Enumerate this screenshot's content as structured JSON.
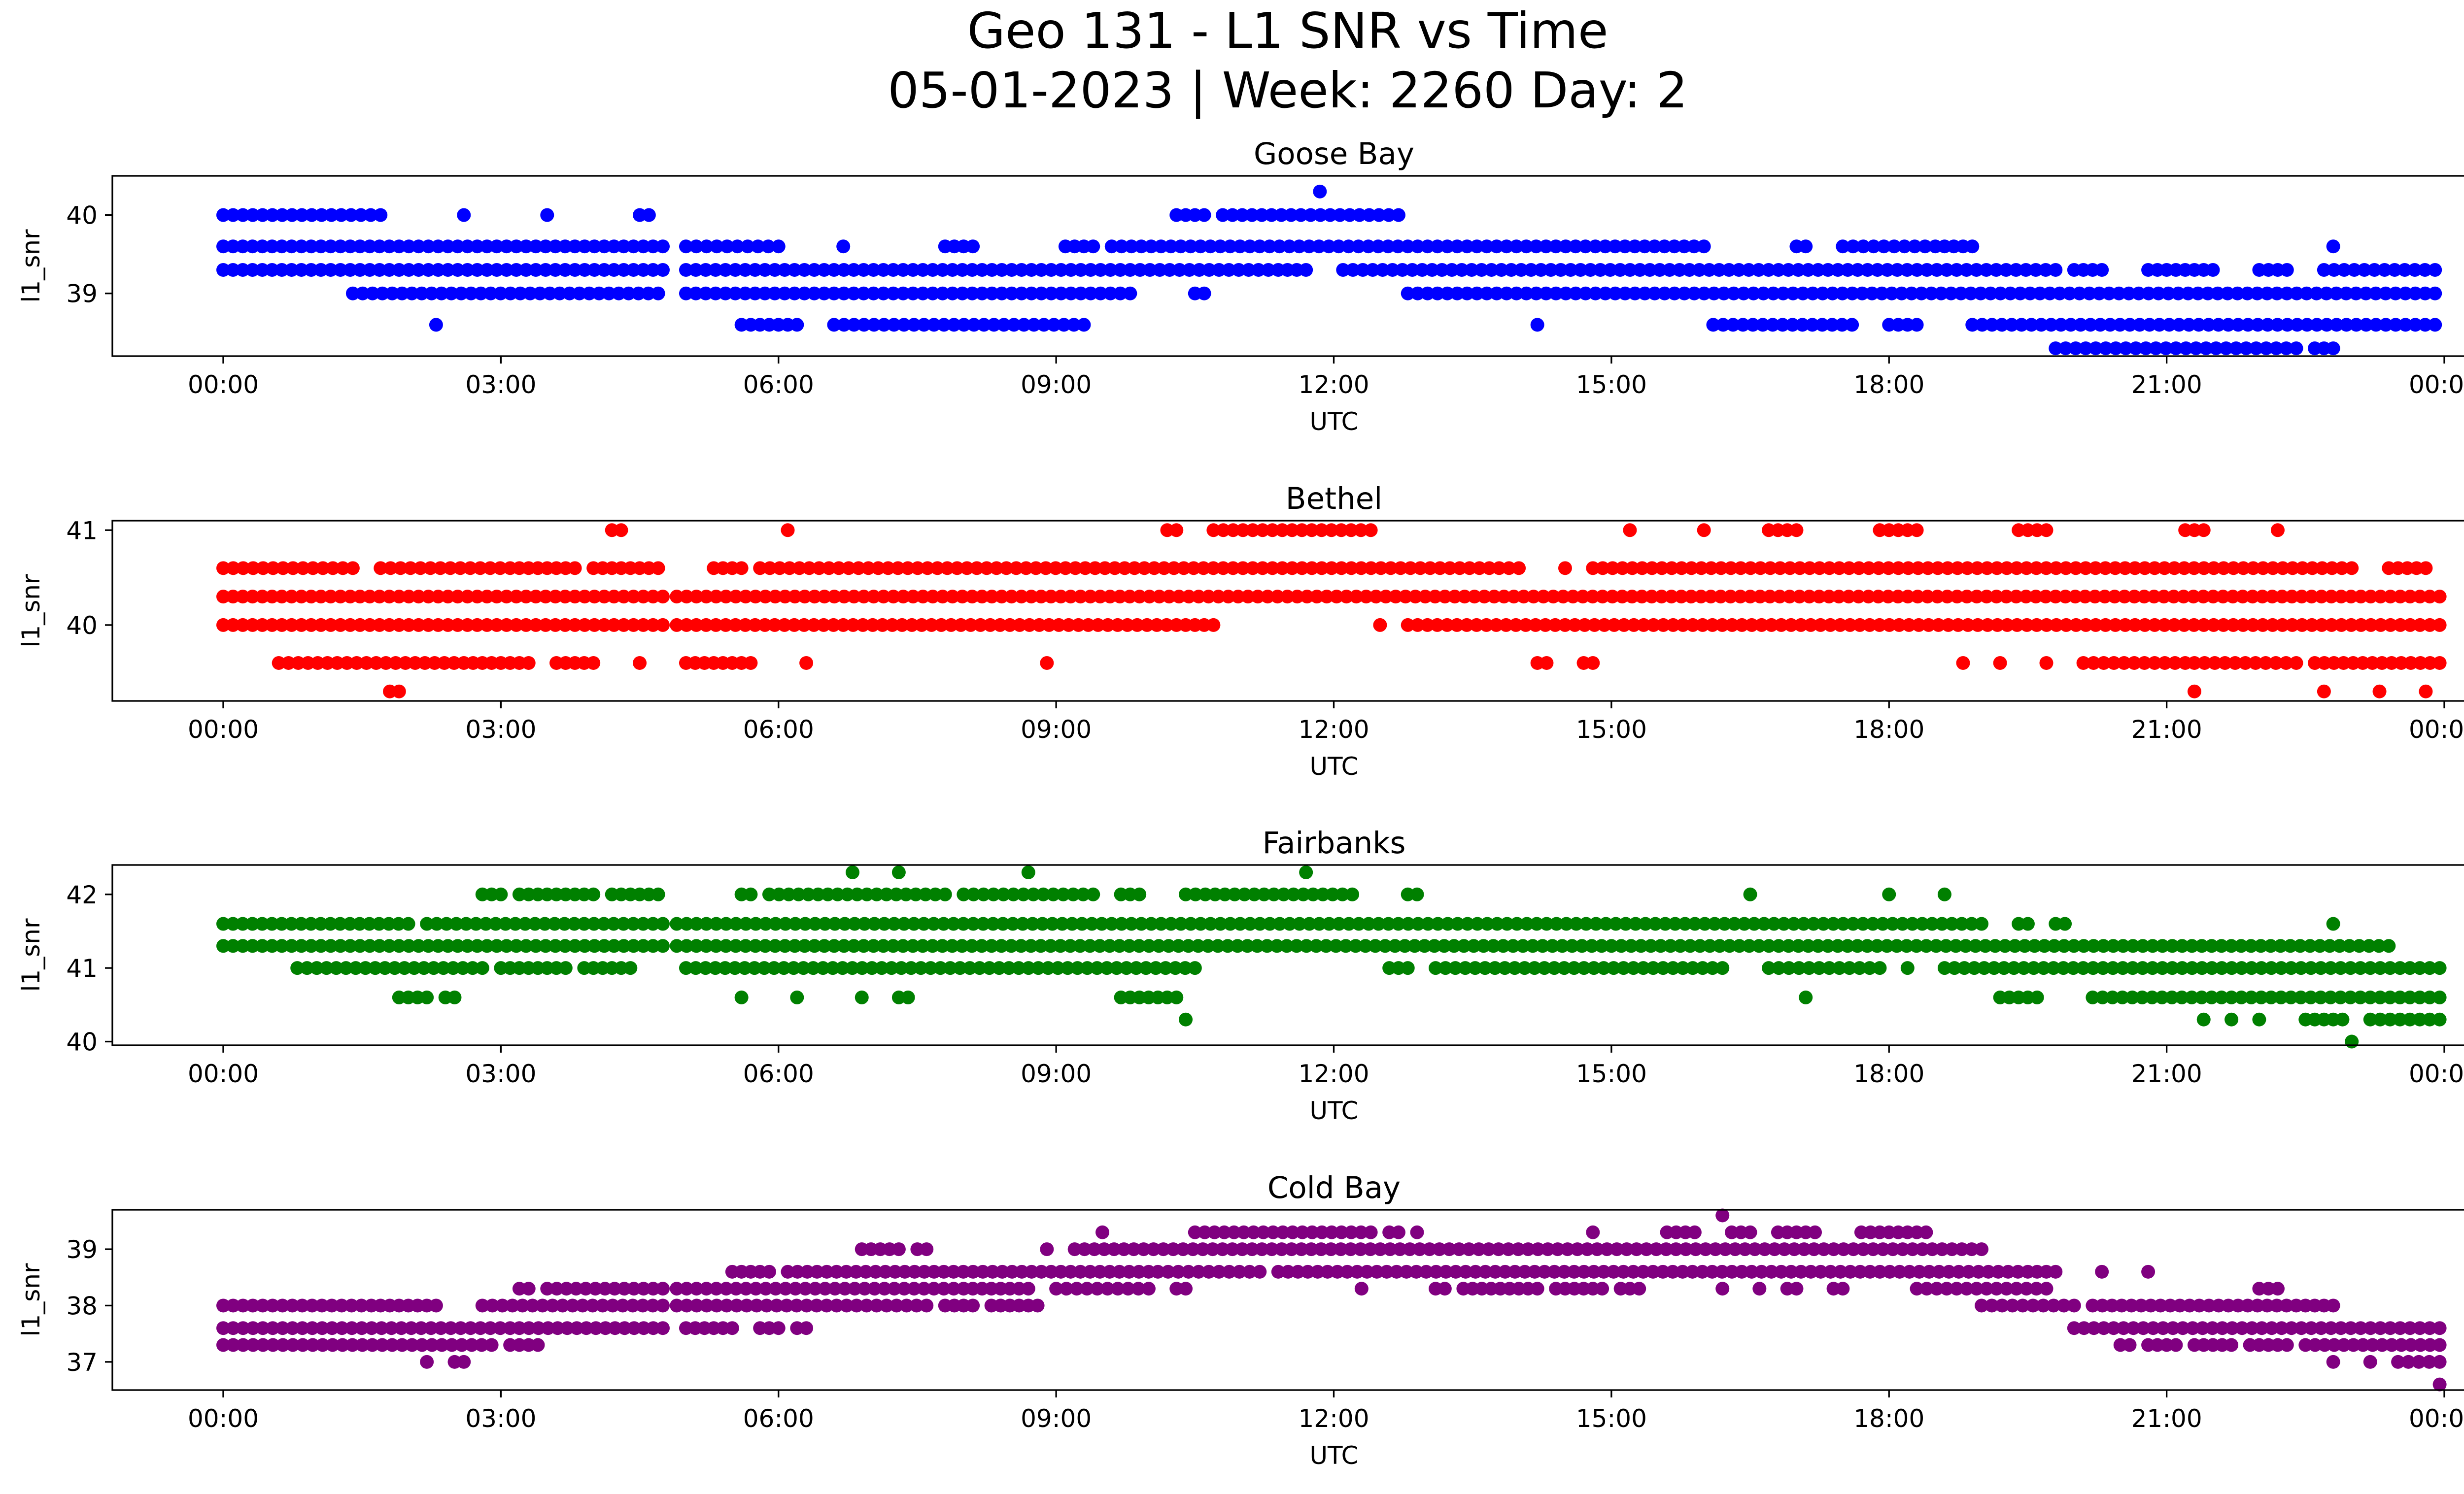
{
  "figure": {
    "title_line1": "Geo 131 - L1 SNR vs Time",
    "title_line2": "05-01-2023 | Week: 2260 Day: 2"
  },
  "chart_data": [
    {
      "type": "scatter",
      "title": "Goose Bay",
      "xlabel": "UTC",
      "ylabel": "l1_snr",
      "color": "#0000ff",
      "xlim": [
        "00:00",
        "24:00"
      ],
      "ylim": [
        38.2,
        40.5
      ],
      "xticks": [
        "00:00",
        "03:00",
        "06:00",
        "09:00",
        "12:00",
        "15:00",
        "18:00",
        "21:00",
        "00:00"
      ],
      "yticks": [
        39,
        40
      ],
      "series": [
        {
          "y": 40.0,
          "segments": [
            [
              0.0,
              1.7
            ],
            [
              2.6,
              2.6
            ],
            [
              3.5,
              3.5
            ],
            [
              4.5,
              4.6
            ],
            [
              10.3,
              10.6
            ],
            [
              10.8,
              12.7
            ]
          ]
        },
        {
          "y": 39.6,
          "segments": [
            [
              0.0,
              4.75
            ],
            [
              5.0,
              6.0
            ],
            [
              6.7,
              6.7
            ],
            [
              7.8,
              8.1
            ],
            [
              9.1,
              9.4
            ],
            [
              9.6,
              16.0
            ],
            [
              17.0,
              17.1
            ],
            [
              17.5,
              18.5
            ],
            [
              18.6,
              18.9
            ],
            [
              22.8,
              22.8
            ]
          ]
        },
        {
          "y": 39.3,
          "segments": [
            [
              0.0,
              4.75
            ],
            [
              5.0,
              11.4
            ],
            [
              11.5,
              11.7
            ],
            [
              12.1,
              19.8
            ],
            [
              20.0,
              20.3
            ],
            [
              20.8,
              21.5
            ],
            [
              22.0,
              22.3
            ],
            [
              22.7,
              23.9
            ]
          ]
        },
        {
          "y": 39.0,
          "segments": [
            [
              1.4,
              4.7
            ],
            [
              5.0,
              9.8
            ],
            [
              10.5,
              10.6
            ],
            [
              12.8,
              23.9
            ]
          ]
        },
        {
          "y": 38.6,
          "segments": [
            [
              2.3,
              2.3
            ],
            [
              5.6,
              6.2
            ],
            [
              6.6,
              9.3
            ],
            [
              14.2,
              14.2
            ],
            [
              16.1,
              17.6
            ],
            [
              18.0,
              18.3
            ],
            [
              18.9,
              23.9
            ]
          ]
        },
        {
          "y": 38.3,
          "segments": [
            [
              19.8,
              22.4
            ],
            [
              22.6,
              22.8
            ]
          ]
        },
        {
          "y": 40.3,
          "segments": [
            [
              11.85,
              11.85
            ]
          ]
        }
      ]
    },
    {
      "type": "scatter",
      "title": "Bethel",
      "xlabel": "UTC",
      "ylabel": "l1_snr",
      "color": "#ff0000",
      "xlim": [
        "00:00",
        "24:00"
      ],
      "ylim": [
        39.2,
        41.1
      ],
      "xticks": [
        "00:00",
        "03:00",
        "06:00",
        "09:00",
        "12:00",
        "15:00",
        "18:00",
        "21:00",
        "00:00"
      ],
      "yticks": [
        40,
        41
      ],
      "series": [
        {
          "y": 41.0,
          "segments": [
            [
              4.2,
              4.3
            ],
            [
              6.1,
              6.1
            ],
            [
              10.2,
              10.3
            ],
            [
              10.7,
              12.4
            ],
            [
              15.2,
              15.2
            ],
            [
              16.0,
              16.0
            ],
            [
              16.7,
              17.0
            ],
            [
              17.9,
              18.3
            ],
            [
              19.4,
              19.7
            ],
            [
              21.2,
              21.4
            ],
            [
              22.2,
              22.2
            ]
          ]
        },
        {
          "y": 40.6,
          "segments": [
            [
              0.0,
              1.4
            ],
            [
              1.7,
              3.1
            ],
            [
              3.2,
              3.8
            ],
            [
              4.0,
              4.7
            ],
            [
              5.3,
              5.6
            ],
            [
              5.8,
              14.0
            ],
            [
              14.5,
              14.5
            ],
            [
              14.8,
              23.0
            ],
            [
              23.4,
              23.8
            ]
          ]
        },
        {
          "y": 40.3,
          "segments": [
            [
              0.0,
              4.75
            ],
            [
              4.9,
              23.95
            ]
          ]
        },
        {
          "y": 40.0,
          "segments": [
            [
              0.0,
              4.75
            ],
            [
              4.9,
              10.3
            ],
            [
              10.4,
              10.7
            ],
            [
              12.5,
              12.5
            ],
            [
              12.8,
              23.95
            ]
          ]
        },
        {
          "y": 39.6,
          "segments": [
            [
              0.6,
              2.6
            ],
            [
              2.7,
              3.3
            ],
            [
              3.6,
              4.0
            ],
            [
              4.5,
              4.5
            ],
            [
              5.0,
              5.5
            ],
            [
              5.6,
              5.7
            ],
            [
              6.3,
              6.3
            ],
            [
              8.9,
              8.9
            ],
            [
              14.2,
              14.3
            ],
            [
              14.7,
              14.8
            ],
            [
              18.8,
              18.8
            ],
            [
              19.2,
              19.2
            ],
            [
              19.7,
              19.7
            ],
            [
              20.1,
              21.2
            ],
            [
              21.3,
              22.4
            ],
            [
              22.6,
              23.95
            ]
          ]
        },
        {
          "y": 39.3,
          "segments": [
            [
              1.8,
              1.9
            ],
            [
              21.3,
              21.3
            ],
            [
              22.7,
              22.7
            ],
            [
              23.3,
              23.3
            ],
            [
              23.8,
              23.8
            ]
          ]
        }
      ]
    },
    {
      "type": "scatter",
      "title": "Fairbanks",
      "xlabel": "UTC",
      "ylabel": "l1_snr",
      "color": "#008000",
      "xlim": [
        "00:00",
        "24:00"
      ],
      "ylim": [
        39.95,
        42.4
      ],
      "xticks": [
        "00:00",
        "03:00",
        "06:00",
        "09:00",
        "12:00",
        "15:00",
        "18:00",
        "21:00",
        "00:00"
      ],
      "yticks": [
        40,
        41,
        42
      ],
      "series": [
        {
          "y": 42.3,
          "segments": [
            [
              6.8,
              6.8
            ],
            [
              7.3,
              7.3
            ],
            [
              8.7,
              8.7
            ],
            [
              11.7,
              11.7
            ]
          ]
        },
        {
          "y": 42.0,
          "segments": [
            [
              2.8,
              3.0
            ],
            [
              3.2,
              4.0
            ],
            [
              4.2,
              4.7
            ],
            [
              5.6,
              5.7
            ],
            [
              5.9,
              7.8
            ],
            [
              8.0,
              9.4
            ],
            [
              9.7,
              9.9
            ],
            [
              10.4,
              12.2
            ],
            [
              12.8,
              12.9
            ],
            [
              16.5,
              16.5
            ],
            [
              18.0,
              18.0
            ],
            [
              18.6,
              18.6
            ]
          ]
        },
        {
          "y": 41.6,
          "segments": [
            [
              0.0,
              2.0
            ],
            [
              2.2,
              4.75
            ],
            [
              4.9,
              19.0
            ],
            [
              19.4,
              19.5
            ],
            [
              19.8,
              19.9
            ],
            [
              22.8,
              22.8
            ]
          ]
        },
        {
          "y": 41.3,
          "segments": [
            [
              0.0,
              4.75
            ],
            [
              4.9,
              23.4
            ]
          ]
        },
        {
          "y": 41.0,
          "segments": [
            [
              0.8,
              2.8
            ],
            [
              3.0,
              3.7
            ],
            [
              3.9,
              4.4
            ],
            [
              5.0,
              10.5
            ],
            [
              12.6,
              12.8
            ],
            [
              13.1,
              16.2
            ],
            [
              16.7,
              17.9
            ],
            [
              18.2,
              18.2
            ],
            [
              18.6,
              23.95
            ]
          ]
        },
        {
          "y": 40.6,
          "segments": [
            [
              1.9,
              2.2
            ],
            [
              2.4,
              2.5
            ],
            [
              5.6,
              5.6
            ],
            [
              6.2,
              6.2
            ],
            [
              6.9,
              6.9
            ],
            [
              7.3,
              7.4
            ],
            [
              9.7,
              10.3
            ],
            [
              17.1,
              17.1
            ],
            [
              19.2,
              19.6
            ],
            [
              20.2,
              23.95
            ]
          ]
        },
        {
          "y": 40.3,
          "segments": [
            [
              10.4,
              10.4
            ],
            [
              21.4,
              21.4
            ],
            [
              21.7,
              21.7
            ],
            [
              22.0,
              22.0
            ],
            [
              22.5,
              22.9
            ],
            [
              23.2,
              23.95
            ]
          ]
        },
        {
          "y": 40.0,
          "segments": [
            [
              23.0,
              23.0
            ]
          ]
        }
      ]
    },
    {
      "type": "scatter",
      "title": "Cold Bay",
      "xlabel": "UTC",
      "ylabel": "l1_snr",
      "color": "#800080",
      "xlim": [
        "00:00",
        "24:00"
      ],
      "ylim": [
        36.5,
        39.7
      ],
      "xticks": [
        "00:00",
        "03:00",
        "06:00",
        "09:00",
        "12:00",
        "15:00",
        "18:00",
        "21:00",
        "00:00"
      ],
      "yticks": [
        37,
        38,
        39
      ],
      "series": [
        {
          "y": 39.6,
          "segments": [
            [
              16.2,
              16.2
            ]
          ]
        },
        {
          "y": 39.3,
          "segments": [
            [
              9.5,
              9.5
            ],
            [
              10.5,
              12.4
            ],
            [
              12.6,
              12.7
            ],
            [
              12.9,
              12.9
            ],
            [
              14.8,
              14.8
            ],
            [
              15.6,
              15.9
            ],
            [
              16.3,
              16.5
            ],
            [
              16.8,
              17.2
            ],
            [
              17.7,
              18.4
            ]
          ]
        },
        {
          "y": 39.0,
          "segments": [
            [
              6.9,
              7.3
            ],
            [
              7.5,
              7.6
            ],
            [
              8.9,
              8.9
            ],
            [
              9.2,
              19.0
            ]
          ]
        },
        {
          "y": 38.6,
          "segments": [
            [
              5.5,
              5.9
            ],
            [
              6.1,
              10.0
            ],
            [
              10.1,
              11.2
            ],
            [
              11.4,
              19.5
            ],
            [
              19.6,
              19.8
            ],
            [
              20.3,
              20.3
            ],
            [
              20.8,
              20.8
            ]
          ]
        },
        {
          "y": 38.3,
          "segments": [
            [
              3.2,
              3.3
            ],
            [
              3.5,
              4.75
            ],
            [
              4.9,
              8.0
            ],
            [
              8.1,
              8.7
            ],
            [
              9.0,
              10.0
            ],
            [
              10.3,
              10.4
            ],
            [
              12.3,
              12.3
            ],
            [
              13.1,
              13.2
            ],
            [
              13.4,
              14.2
            ],
            [
              14.4,
              14.9
            ],
            [
              15.1,
              15.3
            ],
            [
              16.2,
              16.2
            ],
            [
              16.6,
              16.6
            ],
            [
              16.9,
              17.0
            ],
            [
              17.4,
              17.5
            ],
            [
              18.3,
              19.7
            ],
            [
              22.0,
              22.2
            ]
          ]
        },
        {
          "y": 38.0,
          "segments": [
            [
              0.0,
              1.6
            ],
            [
              1.7,
              2.3
            ],
            [
              2.8,
              4.75
            ],
            [
              4.9,
              7.6
            ],
            [
              7.8,
              8.1
            ],
            [
              8.3,
              8.8
            ],
            [
              19.0,
              20.0
            ],
            [
              20.2,
              22.4
            ],
            [
              22.5,
              22.8
            ]
          ]
        },
        {
          "y": 37.6,
          "segments": [
            [
              0.0,
              3.1
            ],
            [
              3.2,
              4.75
            ],
            [
              5.0,
              5.5
            ],
            [
              5.8,
              6.0
            ],
            [
              6.2,
              6.3
            ],
            [
              20.0,
              23.95
            ]
          ]
        },
        {
          "y": 37.3,
          "segments": [
            [
              0.0,
              2.9
            ],
            [
              3.1,
              3.4
            ],
            [
              20.5,
              20.6
            ],
            [
              20.8,
              21.1
            ],
            [
              21.3,
              21.7
            ],
            [
              21.9,
              22.3
            ],
            [
              22.5,
              23.95
            ]
          ]
        },
        {
          "y": 37.0,
          "segments": [
            [
              2.2,
              2.2
            ],
            [
              2.5,
              2.6
            ],
            [
              22.8,
              22.8
            ],
            [
              23.2,
              23.2
            ],
            [
              23.5,
              23.95
            ]
          ]
        },
        {
          "y": 36.6,
          "segments": [
            [
              23.95,
              23.95
            ]
          ]
        }
      ]
    }
  ]
}
